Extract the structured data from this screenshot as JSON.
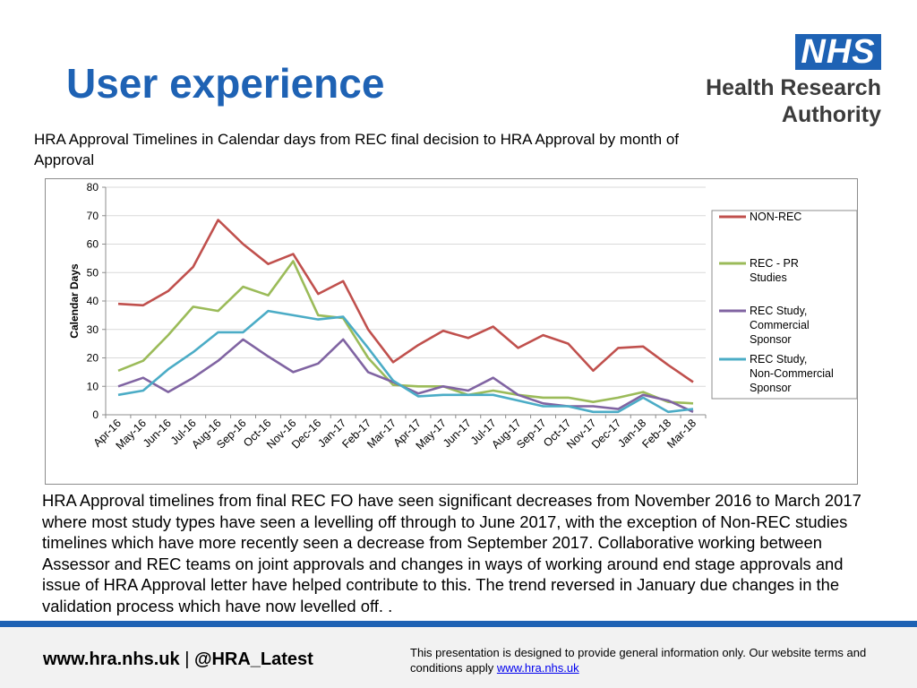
{
  "slide": {
    "title": "User experience",
    "subtitle": "HRA Approval Timelines in Calendar days from REC final decision to HRA Approval by month of Approval",
    "body": "HRA Approval timelines from final REC FO have seen significant decreases from November 2016 to March 2017 where most study types have seen a levelling off through to June 2017, with the exception of Non-REC studies timelines which have more recently seen a decrease from September 2017. Collaborative working between Assessor and REC teams on joint approvals and changes in ways of working around end stage approvals and issue of HRA Approval letter have helped contribute to this. The trend reversed in January due changes in the validation process which have now levelled off. ."
  },
  "logo": {
    "nhs": "NHS",
    "line1": "Health Research",
    "line2": "Authority",
    "color": "#1e62b4"
  },
  "footer": {
    "website": "www.hra.nhs.uk",
    "separator": "|",
    "twitter": "@HRA_Latest",
    "disclaimer": "This presentation is designed to provide general information only. Our website terms and conditions apply",
    "disclaimer_link": "www.hra.nhs.uk"
  },
  "chart_data": {
    "type": "line",
    "ylabel": "Calendar Days",
    "xlabel": "",
    "ylim": [
      0,
      80
    ],
    "yticks": [
      0,
      10,
      20,
      30,
      40,
      50,
      60,
      70,
      80
    ],
    "grid": true,
    "legend_position": "right",
    "categories": [
      "Apr-16",
      "May-16",
      "Jun-16",
      "Jul-16",
      "Aug-16",
      "Sep-16",
      "Oct-16",
      "Nov-16",
      "Dec-16",
      "Jan-17",
      "Feb-17",
      "Mar-17",
      "Apr-17",
      "May-17",
      "Jun-17",
      "Jul-17",
      "Aug-17",
      "Sep-17",
      "Oct-17",
      "Nov-17",
      "Dec-17",
      "Jan-18",
      "Feb-18",
      "Mar-18"
    ],
    "series": [
      {
        "name": "NON-REC",
        "color": "#c0504d",
        "values": [
          39,
          38.5,
          43.5,
          52,
          68.5,
          60,
          53,
          56.5,
          42.5,
          47,
          30,
          18.5,
          24.5,
          29.5,
          27,
          31,
          23.5,
          28,
          25,
          15.5,
          23.5,
          24,
          17.5,
          11.5
        ]
      },
      {
        "name": "REC - PR Studies",
        "color": "#9bbb59",
        "values": [
          15.5,
          19,
          28,
          38,
          36.5,
          45,
          42,
          54,
          35,
          34,
          20,
          10.5,
          10,
          10,
          7,
          8.5,
          7,
          6,
          6,
          4.5,
          6,
          8,
          4.5,
          4
        ]
      },
      {
        "name": "REC Study, Commercial Sponsor",
        "color": "#8064a2",
        "values": [
          10,
          13,
          8,
          13,
          19,
          26.5,
          20.5,
          15,
          18,
          26.5,
          15,
          11.5,
          7.5,
          10,
          8.5,
          13,
          7,
          4,
          3,
          3,
          2,
          7,
          5,
          1
        ]
      },
      {
        "name": "REC Study, Non-Commercial Sponsor",
        "color": "#4bacc6",
        "values": [
          7,
          8.5,
          16,
          22,
          29,
          29,
          36.5,
          35,
          33.5,
          34.5,
          23.5,
          12,
          6.5,
          7,
          7,
          7,
          5,
          3,
          3,
          1,
          1,
          6,
          1,
          2
        ]
      }
    ]
  }
}
